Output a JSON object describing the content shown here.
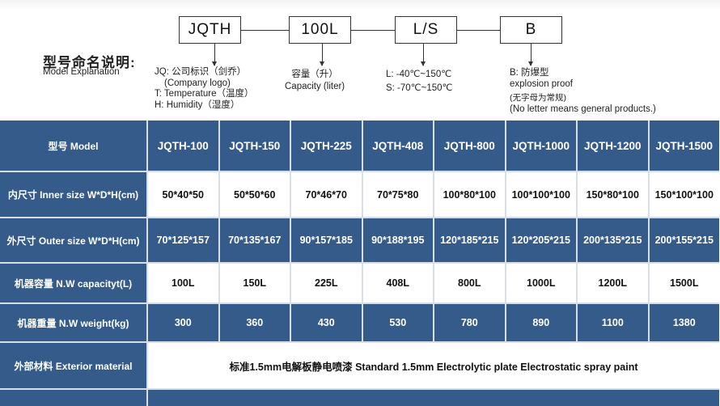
{
  "naming": {
    "title": "型号命名说明:",
    "subtitle": "Model Explanation",
    "boxes": [
      "JQTH",
      "100L",
      "L/S",
      "B"
    ],
    "jq_line1": "JQ: 公司标识（剑乔）",
    "jq_line2": "(Company logo)",
    "jq_line3": "T: Temperature（温度）",
    "jq_line4": "H: Humidity（湿度）",
    "cap_line1": "容量（升）",
    "cap_line2": "Capacity (liter)",
    "temp_line1": "L: -40℃~150℃",
    "temp_line2": "S: -70℃~150℃",
    "b_line1": "B: 防爆型",
    "b_line2": "explosion proof",
    "b_line3": "(无字母为常规)",
    "b_line4": "(No letter means general products.)"
  },
  "colors": {
    "header_blue": "#355b8b",
    "grid": "#d9dee5"
  },
  "table": {
    "rows": [
      {
        "label": "型号 Model",
        "cells": [
          "JQTH-100",
          "JQTH-150",
          "JQTH-225",
          "JQTH-408",
          "JQTH-800",
          "JQTH-1000",
          "JQTH-1200",
          "JQTH-1500"
        ]
      },
      {
        "label": "内尺寸 Inner size W*D*H(cm)",
        "cells": [
          "50*40*50",
          "50*50*60",
          "70*46*70",
          "70*75*80",
          "100*80*100",
          "100*100*100",
          "150*80*100",
          "150*100*100"
        ]
      },
      {
        "label": "外尺寸 Outer size W*D*H(cm)",
        "cells": [
          "70*125*157",
          "70*135*167",
          "90*157*185",
          "90*188*195",
          "120*185*215",
          "120*205*215",
          "200*135*215",
          "200*155*215"
        ]
      },
      {
        "label": "机器容量 N.W capacityt(L)",
        "cells": [
          "100L",
          "150L",
          "225L",
          "408L",
          "800L",
          "1000L",
          "1200L",
          "1500L"
        ]
      },
      {
        "label": "机器重量 N.W weight(kg)",
        "cells": [
          "300",
          "360",
          "430",
          "530",
          "780",
          "890",
          "1100",
          "1380"
        ]
      }
    ],
    "exterior": {
      "label": "外部材料 Exterior material",
      "value": "标准1.5mm电解板静电喷漆  Standard 1.5mm Electrolytic plate Electrostatic spray paint"
    }
  }
}
